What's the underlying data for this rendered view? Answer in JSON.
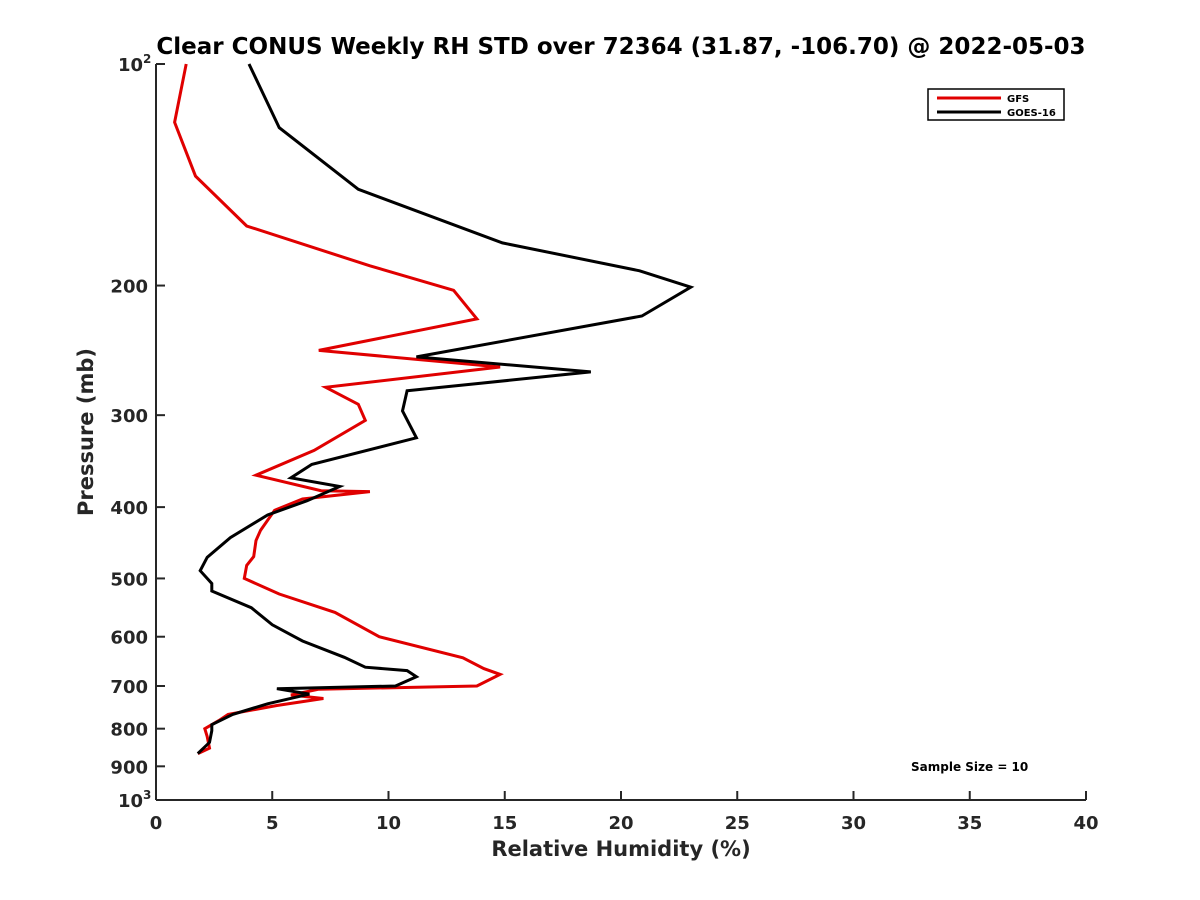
{
  "chart_data": {
    "type": "line",
    "title": "Clear CONUS Weekly RH STD over 72364 (31.87, -106.70) @ 2022-05-03",
    "xlabel": "Relative Humidity (%)",
    "ylabel": "Pressure (mb)",
    "xlim": [
      0,
      40
    ],
    "ylim": [
      100,
      1000
    ],
    "y_scale": "log",
    "y_reversed": true,
    "x_ticks": [
      0,
      5,
      10,
      15,
      20,
      25,
      30,
      35,
      40
    ],
    "x_tick_labels": [
      "0",
      "5",
      "10",
      "15",
      "20",
      "25",
      "30",
      "35",
      "40"
    ],
    "y_ticks": [
      100,
      200,
      300,
      400,
      500,
      600,
      700,
      800,
      900,
      1000
    ],
    "y_tick_labels": [
      {
        "base": "10",
        "exp": "2"
      },
      {
        "base": "200",
        "exp": ""
      },
      {
        "base": "300",
        "exp": ""
      },
      {
        "base": "400",
        "exp": ""
      },
      {
        "base": "500",
        "exp": ""
      },
      {
        "base": "600",
        "exp": ""
      },
      {
        "base": "700",
        "exp": ""
      },
      {
        "base": "800",
        "exp": ""
      },
      {
        "base": "900",
        "exp": ""
      },
      {
        "base": "10",
        "exp": "3"
      }
    ],
    "grid": false,
    "legend_position": "top-right",
    "annotation": "Sample Size = 10",
    "series": [
      {
        "name": "GFS",
        "color": "#e00000",
        "points": [
          [
            1.3,
            100
          ],
          [
            0.8,
            120
          ],
          [
            1.7,
            142
          ],
          [
            3.9,
            166
          ],
          [
            9.2,
            188
          ],
          [
            12.8,
            203
          ],
          [
            13.8,
            222
          ],
          [
            7.0,
            245
          ],
          [
            14.8,
            258
          ],
          [
            7.3,
            275
          ],
          [
            8.7,
            290
          ],
          [
            9.0,
            305
          ],
          [
            6.8,
            335
          ],
          [
            4.3,
            362
          ],
          [
            7.1,
            380
          ],
          [
            9.2,
            381
          ],
          [
            6.3,
            390
          ],
          [
            5.1,
            404
          ],
          [
            4.5,
            430
          ],
          [
            4.3,
            444
          ],
          [
            4.2,
            467
          ],
          [
            3.9,
            480
          ],
          [
            3.8,
            500
          ],
          [
            5.3,
            525
          ],
          [
            7.7,
            556
          ],
          [
            9.6,
            600
          ],
          [
            13.2,
            641
          ],
          [
            14.1,
            663
          ],
          [
            14.8,
            675
          ],
          [
            13.8,
            700
          ],
          [
            7.0,
            707
          ],
          [
            5.8,
            720
          ],
          [
            7.2,
            728
          ],
          [
            5.2,
            744
          ],
          [
            3.1,
            765
          ],
          [
            2.7,
            780
          ],
          [
            2.1,
            800
          ],
          [
            2.2,
            820
          ],
          [
            2.3,
            850
          ],
          [
            1.8,
            865
          ]
        ]
      },
      {
        "name": "GOES-16",
        "color": "#000000",
        "points": [
          [
            4.0,
            100
          ],
          [
            5.3,
            122
          ],
          [
            8.7,
            148
          ],
          [
            14.9,
            175
          ],
          [
            20.8,
            191
          ],
          [
            23.0,
            201
          ],
          [
            20.9,
            220
          ],
          [
            11.2,
            250
          ],
          [
            18.7,
            262
          ],
          [
            10.8,
            278
          ],
          [
            10.6,
            296
          ],
          [
            11.2,
            322
          ],
          [
            6.7,
            350
          ],
          [
            5.8,
            365
          ],
          [
            7.9,
            375
          ],
          [
            6.5,
            392
          ],
          [
            4.8,
            410
          ],
          [
            3.2,
            440
          ],
          [
            2.2,
            468
          ],
          [
            1.9,
            488
          ],
          [
            2.4,
            508
          ],
          [
            2.4,
            520
          ],
          [
            4.1,
            548
          ],
          [
            5.0,
            578
          ],
          [
            6.3,
            608
          ],
          [
            8.1,
            640
          ],
          [
            9.0,
            660
          ],
          [
            10.8,
            667
          ],
          [
            11.2,
            680
          ],
          [
            10.3,
            700
          ],
          [
            5.2,
            706
          ],
          [
            6.6,
            718
          ],
          [
            4.8,
            740
          ],
          [
            3.3,
            765
          ],
          [
            2.4,
            790
          ],
          [
            2.4,
            805
          ],
          [
            2.3,
            835
          ],
          [
            1.8,
            865
          ]
        ]
      }
    ]
  }
}
